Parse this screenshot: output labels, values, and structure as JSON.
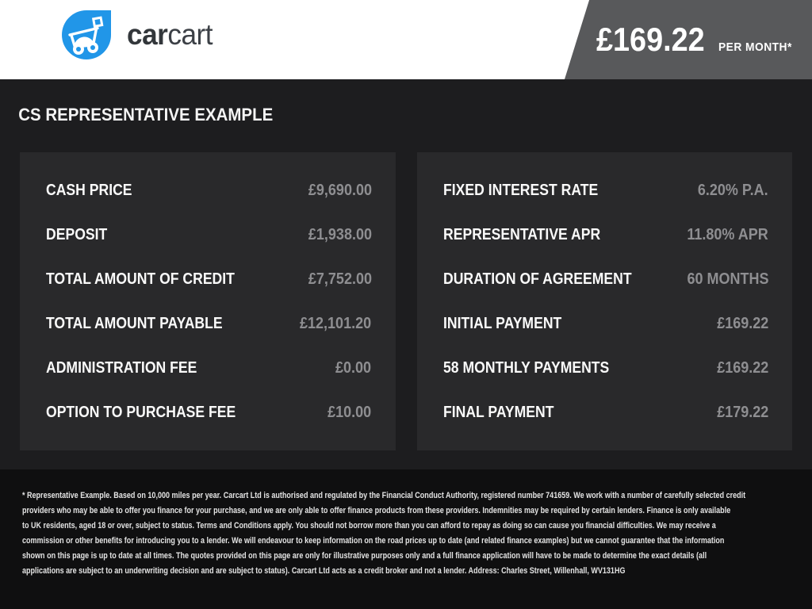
{
  "header": {
    "brand": {
      "word1": "car",
      "word2": "cart"
    },
    "price_flag": {
      "amount": "£169.22",
      "period": "PER MONTH*"
    }
  },
  "main": {
    "title": "CS REPRESENTATIVE EXAMPLE",
    "panels": [
      {
        "rows": [
          {
            "label": "CASH PRICE",
            "value": "£9,690.00"
          },
          {
            "label": "DEPOSIT",
            "value": "£1,938.00"
          },
          {
            "label": "TOTAL AMOUNT OF CREDIT",
            "value": "£7,752.00"
          },
          {
            "label": "TOTAL AMOUNT PAYABLE",
            "value": "£12,101.20"
          },
          {
            "label": "ADMINISTRATION FEE",
            "value": "£0.00"
          },
          {
            "label": "OPTION TO PURCHASE FEE",
            "value": "£10.00"
          }
        ]
      },
      {
        "rows": [
          {
            "label": "FIXED INTEREST RATE",
            "value": "6.20% P.A."
          },
          {
            "label": "REPRESENTATIVE APR",
            "value": "11.80% APR"
          },
          {
            "label": "DURATION OF AGREEMENT",
            "value": "60 MONTHS"
          },
          {
            "label": "INITIAL PAYMENT",
            "value": "£169.22"
          },
          {
            "label": "58 MONTHLY PAYMENTS",
            "value": "£169.22"
          },
          {
            "label": "FINAL PAYMENT",
            "value": "£179.22"
          }
        ]
      }
    ]
  },
  "footer": {
    "lines": [
      "* Representative Example. Based on 10,000 miles per year. Carcart Ltd is authorised and regulated by the Financial Conduct Authority, registered number 741659. We work with a number of carefully selected credit",
      "providers who may be able to offer you finance for your purchase, and we are only able to offer finance products from these providers. Indemnities may be required by certain lenders. Finance is only available",
      "to UK residents, aged 18 or over, subject to status. Terms and Conditions apply. You should not borrow more than you can afford to repay as doing so can cause you financial difficulties. We may receive a",
      "commission or other benefits for introducing you to a lender. We will endeavour to keep information on the road prices up to date (and related finance examples) but we cannot guarantee that the information",
      "shown on this page is up to date at all times. The quotes provided on this page are only for illustrative purposes only and a full finance application will have to be made to determine the exact details (all",
      "applications are subject to an underwriting decision and are subject to status). Carcart Ltd acts as a credit broker and not a lender. Address: Charles Street, Willenhall, WV131HG"
    ]
  },
  "icons": {
    "logo_icon": "shopping-cart-droplet"
  },
  "colors": {
    "brand_blue": "#2196e8",
    "flag_gray": "#58595b",
    "page_bg": "#1d1d1f",
    "panel_bg": "#29292b",
    "footer_bg": "#0f0f10",
    "label_white": "#fafafa",
    "value_gray": "#8e8e91"
  }
}
